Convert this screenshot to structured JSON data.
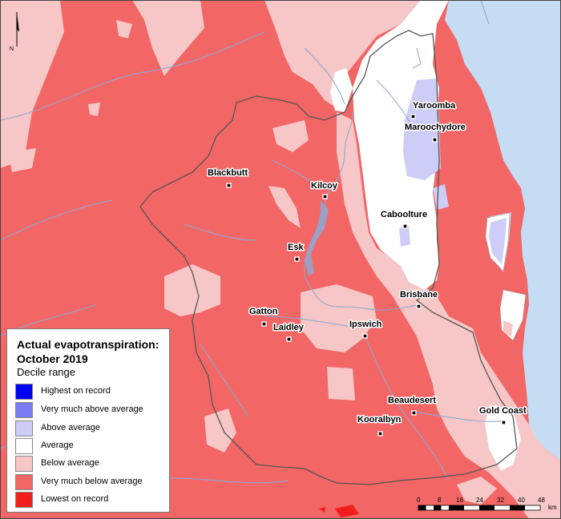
{
  "legend": {
    "title_line1": "Actual evapotranspiration:",
    "title_line2": "October 2019",
    "subtitle": "Decile range",
    "items": [
      {
        "label": "Highest on record",
        "color": "#0000f5"
      },
      {
        "label": "Very much above average",
        "color": "#7b7bf5"
      },
      {
        "label": "Above average",
        "color": "#cdcdf7"
      },
      {
        "label": "Average",
        "color": "#ffffff"
      },
      {
        "label": "Below average",
        "color": "#f7c6c6"
      },
      {
        "label": "Very much below average",
        "color": "#f26666"
      },
      {
        "label": "Lowest on record",
        "color": "#f21e1e"
      }
    ]
  },
  "towns": [
    {
      "name": "Yaroomba"
    },
    {
      "name": "Maroochydore"
    },
    {
      "name": "Blackbutt"
    },
    {
      "name": "Kilcoy"
    },
    {
      "name": "Caboolture"
    },
    {
      "name": "Esk"
    },
    {
      "name": "Brisbane"
    },
    {
      "name": "Gatton"
    },
    {
      "name": "Laidley"
    },
    {
      "name": "Ipswich"
    },
    {
      "name": "Beaudesert"
    },
    {
      "name": "Gold Coast"
    },
    {
      "name": "Kooralbyn"
    }
  ],
  "scale_bar": {
    "ticks": [
      "0",
      "8",
      "16",
      "24",
      "32",
      "40",
      "48"
    ],
    "unit": "km"
  },
  "north_arrow": {
    "label": "N"
  },
  "colors": {
    "ocean": "#c6dcf3",
    "river": "#8fa8d3",
    "boundary": "#555555"
  }
}
